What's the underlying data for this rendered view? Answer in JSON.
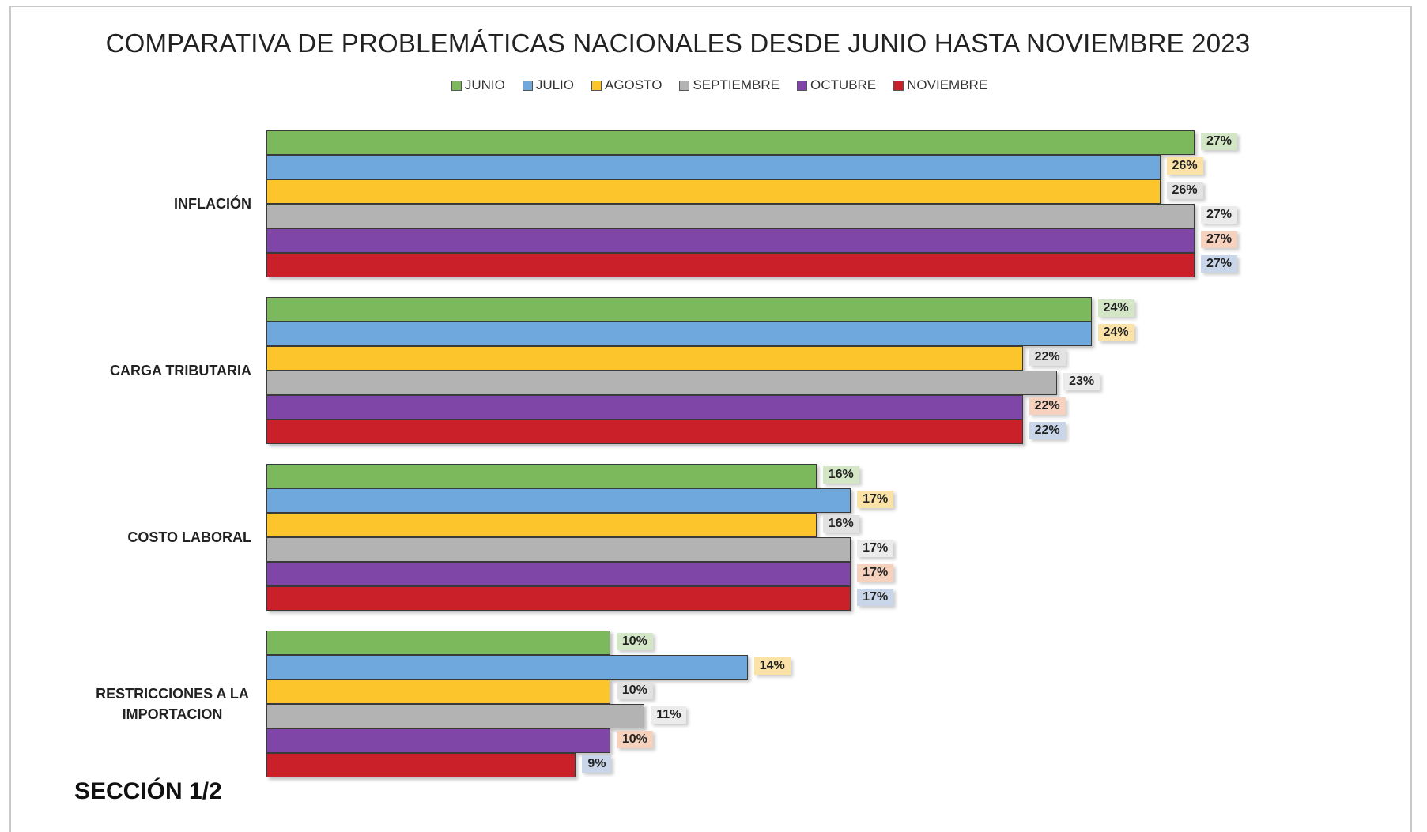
{
  "chart_data": {
    "type": "bar",
    "orientation": "horizontal",
    "title": "COMPARATIVA DE PROBLEMÁTICAS NACIONALES DESDE JUNIO HASTA NOVIEMBRE 2023",
    "annotation": "SECCIÓN 1/2",
    "legend": "top",
    "categories": [
      "INFLACIÓN",
      "CARGA TRIBUTARIA",
      "COSTO LABORAL",
      "RESTRICCIONES A LA IMPORTACION"
    ],
    "series": [
      {
        "name": "JUNIO",
        "color": "#7cb95d",
        "label_background": "#d3e6c6",
        "values": [
          27,
          24,
          16,
          10
        ],
        "value_labels": [
          "27%",
          "24%",
          "16%",
          "10%"
        ]
      },
      {
        "name": "JULIO",
        "color": "#6fa8dc",
        "label_background": "#fbe3a8",
        "values": [
          26,
          24,
          17,
          14
        ],
        "value_labels": [
          "26%",
          "24%",
          "17%",
          "14%"
        ]
      },
      {
        "name": "AGOSTO",
        "color": "#fdc52c",
        "label_background": "#e2e2e2",
        "values": [
          26,
          22,
          16,
          10
        ],
        "value_labels": [
          "26%",
          "22%",
          "16%",
          "10%"
        ]
      },
      {
        "name": "SEPTIEMBRE",
        "color": "#b3b3b3",
        "label_background": "#ebebeb",
        "values": [
          27,
          23,
          17,
          11
        ],
        "value_labels": [
          "27%",
          "23%",
          "17%",
          "11%"
        ]
      },
      {
        "name": "OCTUBRE",
        "color": "#7f46a8",
        "label_background": "#f6d1bd",
        "values": [
          27,
          22,
          17,
          10
        ],
        "value_labels": [
          "27%",
          "22%",
          "17%",
          "10%"
        ]
      },
      {
        "name": "NOVIEMBRE",
        "color": "#c9202a",
        "label_background": "#c9d6ea",
        "values": [
          27,
          22,
          17,
          9
        ],
        "value_labels": [
          "27%",
          "22%",
          "17%",
          "9%"
        ]
      }
    ]
  }
}
